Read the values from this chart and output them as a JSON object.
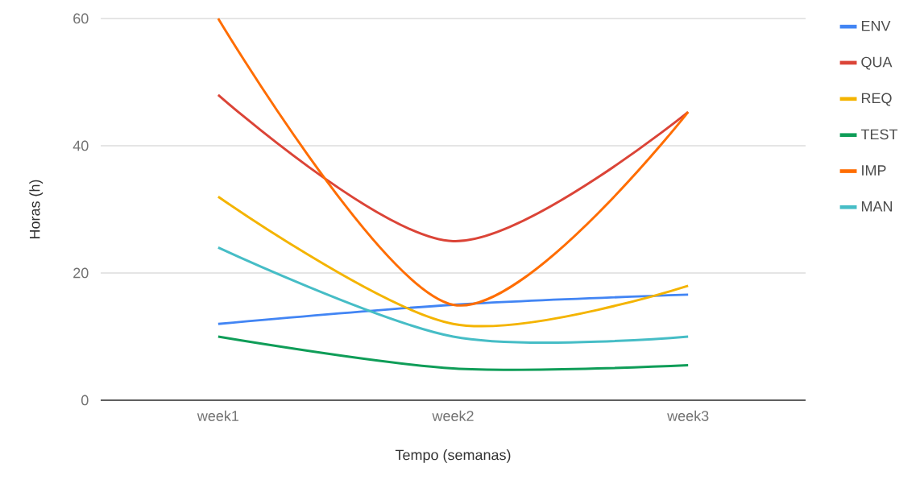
{
  "chart_data": {
    "type": "line",
    "xlabel": "Tempo (semanas)",
    "ylabel": "Horas (h)",
    "categories": [
      "week1",
      "week2",
      "week3"
    ],
    "series": [
      {
        "name": "ENV",
        "color": "#4285f4",
        "values": [
          12,
          15,
          16.6
        ]
      },
      {
        "name": "QUA",
        "color": "#db4437",
        "values": [
          48,
          25,
          45.3
        ]
      },
      {
        "name": "REQ",
        "color": "#f4b400",
        "values": [
          32,
          12,
          18
        ]
      },
      {
        "name": "TEST",
        "color": "#0f9d58",
        "values": [
          10,
          5,
          5.5
        ]
      },
      {
        "name": "IMP",
        "color": "#ff6d00",
        "values": [
          60,
          15,
          45.3
        ]
      },
      {
        "name": "MAN",
        "color": "#46bdc6",
        "values": [
          24,
          10,
          10
        ]
      }
    ],
    "ylim": [
      0,
      60
    ],
    "yticks": [
      0,
      20,
      40,
      60
    ],
    "grid": "y",
    "legend": "right",
    "marker": "none",
    "line_style": "solid"
  }
}
